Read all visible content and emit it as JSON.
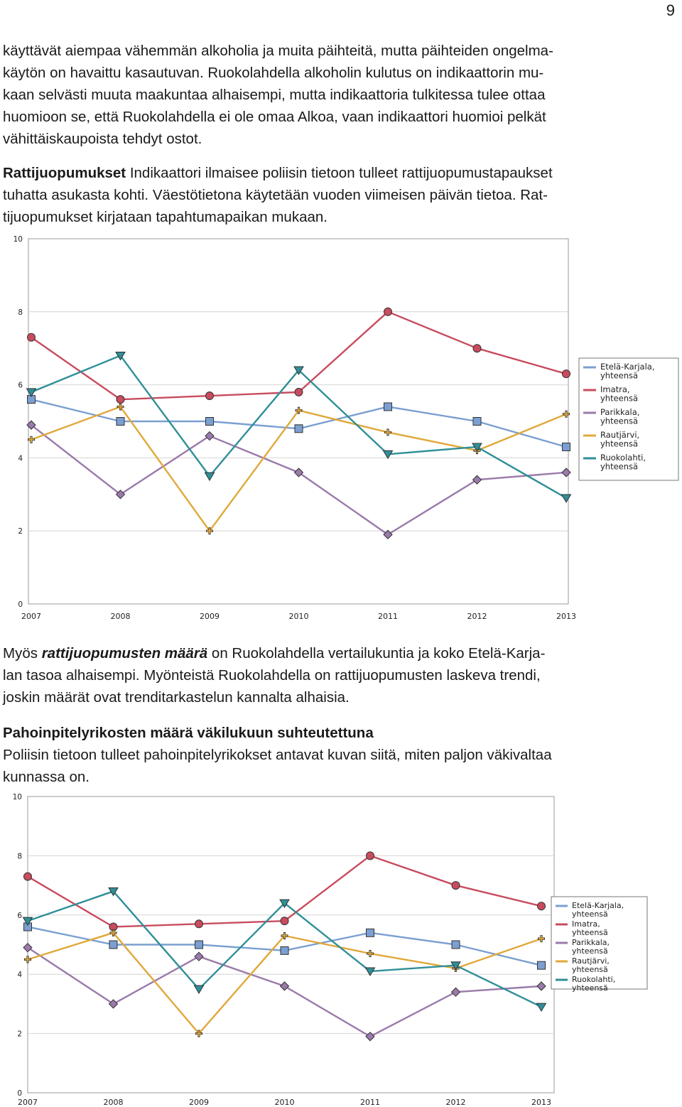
{
  "page_number": "9",
  "paragraphs": {
    "p1_lines": [
      "käyttävät aiempaa vähemmän alkoholia ja muita päihteitä, mutta päihteiden ongelma-",
      "käytön on havaittu kasautuvan. Ruokolahdella alkoholin kulutus on indikaattorin mu-",
      "kaan selvästi muuta maakuntaa alhaisempi, mutta indikaattoria tulkitessa tulee ottaa",
      "huomioon se, että Ruokolahdella ei ole omaa Alkoa, vaan indikaattori huomioi pelkät",
      "vähittäiskaupoista tehdyt ostot."
    ],
    "p2_heading": "Rattijuopumukset",
    "p2_line1_rest": " Indikaattori ilmaisee poliisin tietoon tulleet rattijuopumustapaukset",
    "p2_lines": [
      "tuhatta asukasta kohti. Väestötietona käytetään vuoden viimeisen päivän tietoa. Rat-",
      "tijuopumukset kirjataan tapahtumapaikan mukaan."
    ],
    "p3_pre": "Myös ",
    "p3_emph": "rattijuopumusten määrä",
    "p3_line1_rest": " on Ruokolahdella vertailukuntia ja koko Etelä-Karja-",
    "p3_lines": [
      "lan tasoa alhaisempi. Myönteistä Ruokolahdella on rattijuopumusten laskeva trendi,",
      "joskin määrät ovat trenditarkastelun kannalta alhaisia."
    ],
    "p4_heading": "Pahoinpitelyrikosten määrä väkilukuun suhteutettuna",
    "p4_lines": [
      "Poliisin tietoon tulleet pahoinpitelyrikokset antavat kuvan siitä, miten paljon väkivaltaa",
      "kunnassa on."
    ]
  },
  "chart_data": [
    {
      "type": "line",
      "x": [
        "2007",
        "2008",
        "2009",
        "2010",
        "2011",
        "2012",
        "2013"
      ],
      "ylim": [
        0,
        10
      ],
      "yticks": [
        "0",
        "2",
        "4",
        "6",
        "8",
        "10"
      ],
      "grid": "horizontal",
      "legend_position": "right",
      "series": [
        {
          "name": "Etelä-Karjala, yhteensä",
          "legend_lines": [
            "Etelä-Karjala,",
            "yhteensä"
          ],
          "color": "#7b9fd1",
          "marker": "square",
          "values": [
            5.6,
            5.0,
            5.0,
            4.8,
            5.4,
            5.0,
            4.3
          ]
        },
        {
          "name": "Imatra, yhteensä",
          "legend_lines": [
            "Imatra,",
            "yhteensä"
          ],
          "color": "#c84c5e",
          "marker": "circle",
          "values": [
            7.3,
            5.6,
            5.7,
            5.8,
            8.0,
            7.0,
            6.3
          ]
        },
        {
          "name": "Parikkala, yhteensä",
          "legend_lines": [
            "Parikkala,",
            "yhteensä"
          ],
          "color": "#9a7aaa",
          "marker": "diamond",
          "values": [
            4.9,
            3.0,
            4.6,
            3.6,
            1.9,
            3.4,
            3.6
          ]
        },
        {
          "name": "Rautjärvi, yhteensä",
          "legend_lines": [
            "Rautjärvi,",
            "yhteensä"
          ],
          "color": "#e0a83a",
          "marker": "plus",
          "values": [
            4.5,
            5.4,
            2.0,
            5.3,
            4.7,
            4.2,
            5.2
          ]
        },
        {
          "name": "Ruokolahti, yhteensä",
          "legend_lines": [
            "Ruokolahti,",
            "yhteensä"
          ],
          "color": "#2f8f97",
          "marker": "triangle-down",
          "values": [
            5.8,
            6.8,
            3.5,
            6.4,
            4.1,
            4.3,
            2.9
          ]
        }
      ]
    },
    {
      "type": "line",
      "x": [
        "2007",
        "2008",
        "2009",
        "2010",
        "2011",
        "2012",
        "2013"
      ],
      "ylim": [
        0,
        10
      ],
      "yticks": [
        "0",
        "2",
        "4",
        "6",
        "8",
        "10"
      ],
      "grid": "horizontal",
      "legend_position": "right",
      "series": [
        {
          "name": "Etelä-Karjala, yhteensä",
          "legend_lines": [
            "Etelä-Karjala,",
            "yhteensä"
          ],
          "color": "#7b9fd1",
          "marker": "square",
          "values": [
            5.6,
            5.0,
            5.0,
            4.8,
            5.4,
            5.0,
            4.3
          ]
        },
        {
          "name": "Imatra, yhteensä",
          "legend_lines": [
            "Imatra,",
            "yhteensä"
          ],
          "color": "#c84c5e",
          "marker": "circle",
          "values": [
            7.3,
            5.6,
            5.7,
            5.8,
            8.0,
            7.0,
            6.3
          ]
        },
        {
          "name": "Parikkala, yhteensä",
          "legend_lines": [
            "Parikkala,",
            "yhteensä"
          ],
          "color": "#9a7aaa",
          "marker": "diamond",
          "values": [
            4.9,
            3.0,
            4.6,
            3.6,
            1.9,
            3.4,
            3.6
          ]
        },
        {
          "name": "Rautjärvi, yhteensä",
          "legend_lines": [
            "Rautjärvi,",
            "yhteensä"
          ],
          "color": "#e0a83a",
          "marker": "plus",
          "values": [
            4.5,
            5.4,
            2.0,
            5.3,
            4.7,
            4.2,
            5.2
          ]
        },
        {
          "name": "Ruokolahti, yhteensä",
          "legend_lines": [
            "Ruokolahti,",
            "yhteensä"
          ],
          "color": "#2f8f97",
          "marker": "triangle-down",
          "values": [
            5.8,
            6.8,
            3.5,
            6.4,
            4.1,
            4.3,
            2.9
          ]
        }
      ]
    }
  ]
}
